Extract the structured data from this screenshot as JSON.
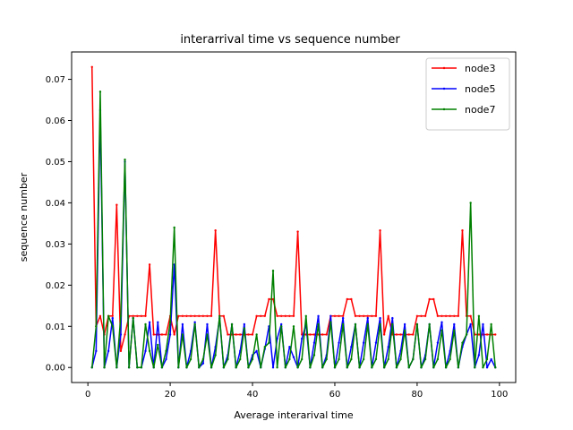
{
  "chart_data": {
    "type": "line",
    "title": "interarrival time vs sequence number",
    "xlabel": "Average interarival time",
    "ylabel": "sequence number",
    "xlim": [
      -3.95,
      103.95
    ],
    "ylim": [
      -0.00365,
      0.07665
    ],
    "xticks": [
      0,
      20,
      40,
      60,
      80,
      100
    ],
    "xtick_labels": [
      "0",
      "20",
      "40",
      "60",
      "80",
      "100"
    ],
    "yticks": [
      0.0,
      0.01,
      0.02,
      0.03,
      0.04,
      0.05,
      0.06,
      0.07
    ],
    "ytick_labels": [
      "0.00",
      "0.01",
      "0.02",
      "0.03",
      "0.04",
      "0.05",
      "0.06",
      "0.07"
    ],
    "grid": false,
    "legend_position": "top-right",
    "x": [
      1,
      2,
      3,
      4,
      5,
      6,
      7,
      8,
      9,
      10,
      11,
      12,
      13,
      14,
      15,
      16,
      17,
      18,
      19,
      20,
      21,
      22,
      23,
      24,
      25,
      26,
      27,
      28,
      29,
      30,
      31,
      32,
      33,
      34,
      35,
      36,
      37,
      38,
      39,
      40,
      41,
      42,
      43,
      44,
      45,
      46,
      47,
      48,
      49,
      50,
      51,
      52,
      53,
      54,
      55,
      56,
      57,
      58,
      59,
      60,
      61,
      62,
      63,
      64,
      65,
      66,
      67,
      68,
      69,
      70,
      71,
      72,
      73,
      74,
      75,
      76,
      77,
      78,
      79,
      80,
      81,
      82,
      83,
      84,
      85,
      86,
      87,
      88,
      89,
      90,
      91,
      92,
      93,
      94,
      95,
      96,
      97,
      98,
      99
    ],
    "series": [
      {
        "name": "node3",
        "color": "#ff0000",
        "values": [
          0.073,
          0.01,
          0.0125,
          0.008,
          0.0125,
          0.0125,
          0.0395,
          0.004,
          0.008,
          0.0125,
          0.0125,
          0.0125,
          0.0125,
          0.0125,
          0.025,
          0.008,
          0.008,
          0.008,
          0.008,
          0.0125,
          0.008,
          0.0125,
          0.0125,
          0.0125,
          0.0125,
          0.0125,
          0.0125,
          0.0125,
          0.0125,
          0.0125,
          0.0333,
          0.0125,
          0.0125,
          0.008,
          0.008,
          0.008,
          0.008,
          0.008,
          0.008,
          0.008,
          0.0125,
          0.0125,
          0.0125,
          0.0166,
          0.0166,
          0.0125,
          0.0125,
          0.0125,
          0.0125,
          0.0125,
          0.033,
          0.008,
          0.008,
          0.008,
          0.008,
          0.008,
          0.008,
          0.008,
          0.0125,
          0.0125,
          0.0125,
          0.0125,
          0.0166,
          0.0166,
          0.0125,
          0.0125,
          0.0125,
          0.0125,
          0.0125,
          0.0125,
          0.0333,
          0.008,
          0.0125,
          0.008,
          0.008,
          0.008,
          0.008,
          0.008,
          0.008,
          0.0125,
          0.0125,
          0.0125,
          0.0166,
          0.0166,
          0.0125,
          0.0125,
          0.0125,
          0.0125,
          0.0125,
          0.0125,
          0.0333,
          0.0125,
          0.0125,
          0.008,
          0.008,
          0.008,
          0.008,
          0.008,
          0.008
        ]
      },
      {
        "name": "node5",
        "color": "#0000ff",
        "values": [
          0.0,
          0.004,
          0.0625,
          0.0,
          0.004,
          0.012,
          0.0,
          0.008,
          0.05,
          0.0,
          0.012,
          0.0,
          0.0,
          0.004,
          0.011,
          0.0,
          0.011,
          0.0,
          0.002,
          0.008,
          0.025,
          0.0,
          0.0105,
          0.0,
          0.004,
          0.011,
          0.0,
          0.001,
          0.0105,
          0.0,
          0.005,
          0.012,
          0.0,
          0.003,
          0.0105,
          0.0,
          0.004,
          0.0105,
          0.0,
          0.003,
          0.004,
          0.0,
          0.0045,
          0.01,
          0.0,
          0.007,
          0.0105,
          0.0,
          0.005,
          0.0025,
          0.0,
          0.007,
          0.0105,
          0.0,
          0.006,
          0.0125,
          0.0,
          0.003,
          0.0125,
          0.0,
          0.006,
          0.012,
          0.0,
          0.005,
          0.0105,
          0.0,
          0.006,
          0.012,
          0.0,
          0.006,
          0.012,
          0.0,
          0.005,
          0.012,
          0.0,
          0.004,
          0.0105,
          0.0,
          0.002,
          0.0105,
          0.0,
          0.003,
          0.0105,
          0.0,
          0.006,
          0.011,
          0.0,
          0.004,
          0.0105,
          0.0,
          0.005,
          0.008,
          0.0105,
          0.0,
          0.003,
          0.0105,
          0.0,
          0.002,
          0.0
        ]
      },
      {
        "name": "node7",
        "color": "#008000",
        "values": [
          0.0,
          0.01,
          0.067,
          0.0,
          0.0125,
          0.01,
          0.0,
          0.0125,
          0.0505,
          0.0,
          0.012,
          0.0,
          0.0,
          0.0105,
          0.004,
          0.0,
          0.0055,
          0.0,
          0.004,
          0.011,
          0.034,
          0.0,
          0.008,
          0.0,
          0.002,
          0.0105,
          0.0,
          0.002,
          0.008,
          0.0,
          0.003,
          0.0125,
          0.0,
          0.002,
          0.0105,
          0.0,
          0.002,
          0.0095,
          0.0,
          0.002,
          0.008,
          0.0,
          0.005,
          0.006,
          0.0235,
          0.0,
          0.01,
          0.0,
          0.002,
          0.01,
          0.0,
          0.002,
          0.0125,
          0.0,
          0.003,
          0.0105,
          0.0,
          0.002,
          0.011,
          0.0,
          0.002,
          0.0105,
          0.0,
          0.002,
          0.0105,
          0.0,
          0.002,
          0.0105,
          0.0,
          0.002,
          0.0105,
          0.0,
          0.002,
          0.0105,
          0.0,
          0.002,
          0.009,
          0.0,
          0.002,
          0.0105,
          0.0,
          0.002,
          0.0105,
          0.0,
          0.002,
          0.009,
          0.0,
          0.002,
          0.009,
          0.0,
          0.006,
          0.008,
          0.04,
          0.0,
          0.0125,
          0.0,
          0.002,
          0.0105,
          0.0
        ]
      }
    ]
  }
}
